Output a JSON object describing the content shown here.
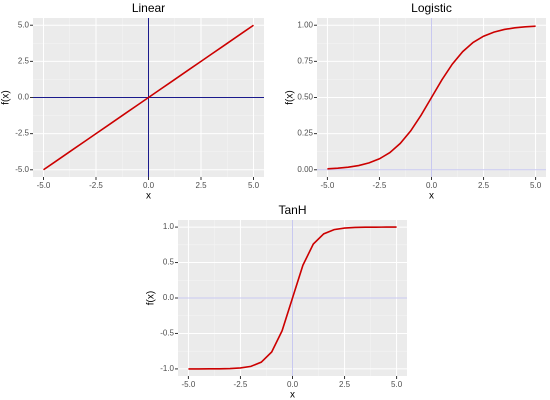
{
  "chart_data": [
    {
      "type": "line",
      "title": "Linear",
      "x_label": "x",
      "y_label": "f(x)",
      "x": [
        -5,
        -4.5,
        -4,
        -3.5,
        -3,
        -2.5,
        -2,
        -1.5,
        -1,
        -0.5,
        0,
        0.5,
        1,
        1.5,
        2,
        2.5,
        3,
        3.5,
        4,
        4.5,
        5
      ],
      "values": [
        -5,
        -4.5,
        -4,
        -3.5,
        -3,
        -2.5,
        -2,
        -1.5,
        -1,
        -0.5,
        0,
        0.5,
        1,
        1.5,
        2,
        2.5,
        3,
        3.5,
        4,
        4.5,
        5
      ],
      "color": "#cc0000",
      "xlim": [
        -5.5,
        5.5
      ],
      "ylim": [
        -5.5,
        5.5
      ],
      "xticks": [
        {
          "value": -5,
          "label": "-5.0"
        },
        {
          "value": -2.5,
          "label": "-2.5"
        },
        {
          "value": 0,
          "label": "0.0"
        },
        {
          "value": 2.5,
          "label": "2.5"
        },
        {
          "value": 5,
          "label": "5.0"
        }
      ],
      "yticks": [
        {
          "value": -5,
          "label": "-5.0"
        },
        {
          "value": -2.5,
          "label": "-2.5"
        },
        {
          "value": 0,
          "label": "0.0"
        },
        {
          "value": 2.5,
          "label": "2.5"
        },
        {
          "value": 5,
          "label": "5.0"
        }
      ],
      "grid": true,
      "hline": 0,
      "vline": 0,
      "ref_color": "#1a1a8c"
    },
    {
      "type": "line",
      "title": "Logistic",
      "x_label": "x",
      "y_label": "f(x)",
      "x": [
        -5,
        -4.5,
        -4,
        -3.5,
        -3,
        -2.5,
        -2,
        -1.5,
        -1,
        -0.5,
        0,
        0.5,
        1,
        1.5,
        2,
        2.5,
        3,
        3.5,
        4,
        4.5,
        5
      ],
      "values": [
        0.0067,
        0.011,
        0.018,
        0.0293,
        0.0474,
        0.0759,
        0.1192,
        0.1824,
        0.2689,
        0.3775,
        0.5,
        0.6225,
        0.7311,
        0.8176,
        0.8808,
        0.9241,
        0.9526,
        0.9707,
        0.982,
        0.989,
        0.9933
      ],
      "color": "#cc0000",
      "xlim": [
        -5.5,
        5.5
      ],
      "ylim": [
        -0.05,
        1.05
      ],
      "xticks": [
        {
          "value": -5,
          "label": "-5.0"
        },
        {
          "value": -2.5,
          "label": "-2.5"
        },
        {
          "value": 0,
          "label": "0.0"
        },
        {
          "value": 2.5,
          "label": "2.5"
        },
        {
          "value": 5,
          "label": "5.0"
        }
      ],
      "yticks": [
        {
          "value": 0,
          "label": "0.00"
        },
        {
          "value": 0.25,
          "label": "0.25"
        },
        {
          "value": 0.5,
          "label": "0.50"
        },
        {
          "value": 0.75,
          "label": "0.75"
        },
        {
          "value": 1,
          "label": "1.00"
        }
      ],
      "grid": true,
      "hline": 0,
      "vline": 0,
      "ref_color": "#c8c8f0"
    },
    {
      "type": "line",
      "title": "TanH",
      "x_label": "x",
      "y_label": "f(x)",
      "x": [
        -5,
        -4.5,
        -4,
        -3.5,
        -3,
        -2.5,
        -2,
        -1.5,
        -1,
        -0.5,
        0,
        0.5,
        1,
        1.5,
        2,
        2.5,
        3,
        3.5,
        4,
        4.5,
        5
      ],
      "values": [
        -0.9999,
        -0.9998,
        -0.9993,
        -0.9982,
        -0.9951,
        -0.9866,
        -0.964,
        -0.9051,
        -0.7616,
        -0.4621,
        0,
        0.4621,
        0.7616,
        0.9051,
        0.964,
        0.9866,
        0.9951,
        0.9982,
        0.9993,
        0.9998,
        0.9999
      ],
      "color": "#cc0000",
      "xlim": [
        -5.5,
        5.5
      ],
      "ylim": [
        -1.1,
        1.1
      ],
      "xticks": [
        {
          "value": -5,
          "label": "-5.0"
        },
        {
          "value": -2.5,
          "label": "-2.5"
        },
        {
          "value": 0,
          "label": "0.0"
        },
        {
          "value": 2.5,
          "label": "2.5"
        },
        {
          "value": 5,
          "label": "5.0"
        }
      ],
      "yticks": [
        {
          "value": -1,
          "label": "-1.0"
        },
        {
          "value": -0.5,
          "label": "-0.5"
        },
        {
          "value": 0,
          "label": "0.0"
        },
        {
          "value": 0.5,
          "label": "0.5"
        },
        {
          "value": 1,
          "label": "1.0"
        }
      ],
      "grid": true,
      "hline": 0,
      "vline": 0,
      "ref_color": "#c8c8f0"
    }
  ]
}
